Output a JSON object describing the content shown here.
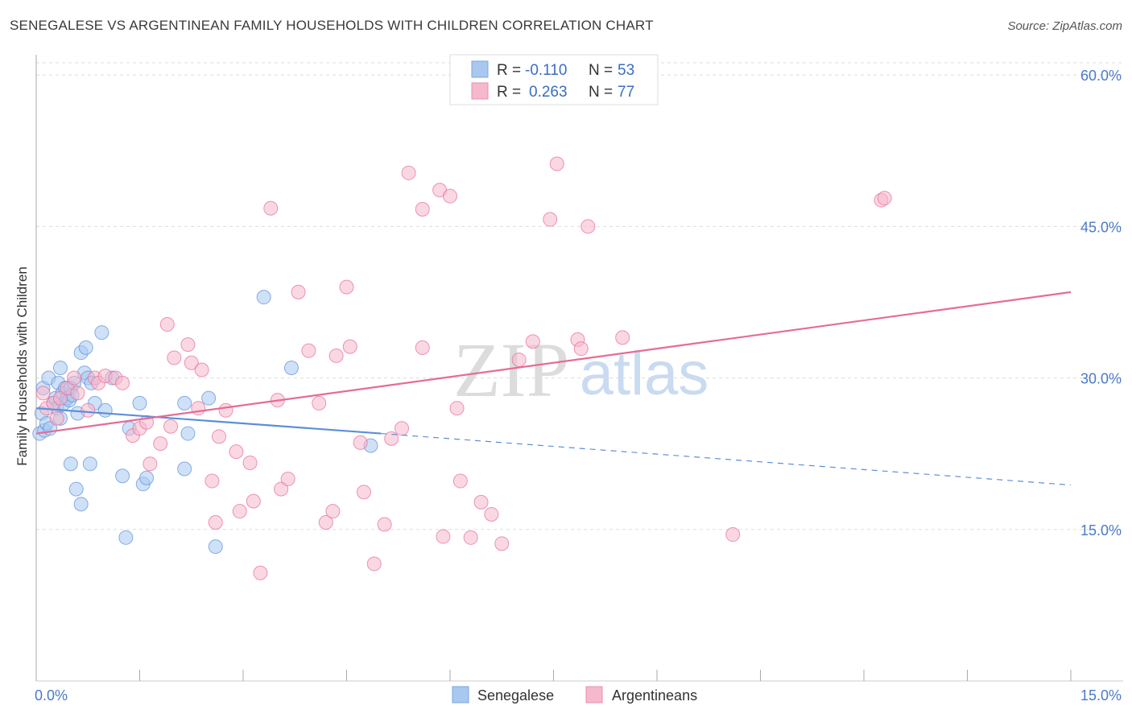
{
  "header": {
    "title": "SENEGALESE VS ARGENTINEAN FAMILY HOUSEHOLDS WITH CHILDREN CORRELATION CHART",
    "source": "Source: ZipAtlas.com"
  },
  "watermark": {
    "zip": "ZIP",
    "atlas": "atlas"
  },
  "legend": {
    "rows": [
      {
        "r_label": "R =",
        "r_value": "-0.110",
        "n_label": "N =",
        "n_value": "53",
        "color": "#a8c8f0"
      },
      {
        "r_label": "R =",
        "r_value": "0.263",
        "n_label": "N =",
        "n_value": "77",
        "color": "#f5b8cc"
      }
    ]
  },
  "chart_data": {
    "type": "scatter",
    "title": "SENEGALESE VS ARGENTINEAN FAMILY HOUSEHOLDS WITH CHILDREN CORRELATION CHART",
    "xlabel": "",
    "ylabel": "Family Households with Children",
    "xlim": [
      0,
      15
    ],
    "ylim": [
      0,
      62
    ],
    "x_tick_labels": [
      "0.0%",
      "15.0%"
    ],
    "y_ticks": [
      15,
      30,
      45,
      60
    ],
    "y_tick_labels": [
      "15.0%",
      "30.0%",
      "45.0%",
      "60.0%"
    ],
    "grid": true,
    "legend_position": "top-center",
    "series": [
      {
        "name": "Senegalese",
        "color": "#5b8fd8",
        "fill": "#a8c8f0",
        "r": -0.11,
        "n": 53,
        "trend": {
          "x0": 0.0,
          "y0": 27.0,
          "x1": 5.0,
          "y1": 24.5,
          "dashed_to_x": 15.0,
          "dashed_to_y": 19.4
        },
        "points": [
          [
            0.05,
            24.5
          ],
          [
            0.08,
            26.5
          ],
          [
            0.1,
            29.0
          ],
          [
            0.12,
            24.8
          ],
          [
            0.15,
            25.5
          ],
          [
            0.18,
            30.0
          ],
          [
            0.2,
            25.0
          ],
          [
            0.25,
            27.5
          ],
          [
            0.28,
            28.0
          ],
          [
            0.3,
            27.0
          ],
          [
            0.32,
            29.5
          ],
          [
            0.35,
            26.0
          ],
          [
            0.35,
            31.0
          ],
          [
            0.38,
            28.5
          ],
          [
            0.4,
            27.5
          ],
          [
            0.42,
            29.0
          ],
          [
            0.45,
            28.0
          ],
          [
            0.48,
            27.8
          ],
          [
            0.5,
            21.5
          ],
          [
            0.5,
            29.0
          ],
          [
            0.52,
            28.3
          ],
          [
            0.55,
            29.5
          ],
          [
            0.58,
            19.0
          ],
          [
            0.6,
            26.5
          ],
          [
            0.65,
            32.5
          ],
          [
            0.65,
            17.5
          ],
          [
            0.7,
            30.5
          ],
          [
            0.72,
            33.0
          ],
          [
            0.75,
            30.0
          ],
          [
            0.78,
            21.5
          ],
          [
            0.8,
            29.5
          ],
          [
            0.85,
            27.5
          ],
          [
            0.95,
            34.5
          ],
          [
            1.0,
            26.8
          ],
          [
            1.1,
            30.0
          ],
          [
            1.25,
            20.3
          ],
          [
            1.3,
            14.2
          ],
          [
            1.35,
            25.0
          ],
          [
            1.5,
            27.5
          ],
          [
            1.55,
            19.5
          ],
          [
            1.6,
            20.1
          ],
          [
            2.15,
            27.5
          ],
          [
            2.15,
            21.0
          ],
          [
            2.2,
            24.5
          ],
          [
            2.5,
            28.0
          ],
          [
            2.6,
            13.3
          ],
          [
            3.3,
            38.0
          ],
          [
            3.7,
            31.0
          ],
          [
            4.85,
            23.3
          ]
        ]
      },
      {
        "name": "Argentineans",
        "color": "#e66b95",
        "fill": "#f5b8cc",
        "r": 0.263,
        "n": 77,
        "trend": {
          "x0": 0.0,
          "y0": 24.5,
          "x1": 15.0,
          "y1": 38.5
        },
        "points": [
          [
            0.1,
            28.5
          ],
          [
            0.15,
            27.0
          ],
          [
            0.25,
            27.5
          ],
          [
            0.3,
            26.0
          ],
          [
            0.35,
            28.0
          ],
          [
            0.45,
            29.0
          ],
          [
            0.55,
            30.0
          ],
          [
            0.6,
            28.5
          ],
          [
            0.75,
            26.8
          ],
          [
            0.85,
            30.0
          ],
          [
            0.9,
            29.5
          ],
          [
            1.0,
            30.2
          ],
          [
            1.15,
            30.0
          ],
          [
            1.25,
            29.5
          ],
          [
            1.4,
            24.3
          ],
          [
            1.5,
            25.0
          ],
          [
            1.6,
            25.6
          ],
          [
            1.65,
            21.5
          ],
          [
            1.8,
            23.5
          ],
          [
            1.9,
            35.3
          ],
          [
            1.95,
            25.2
          ],
          [
            2.0,
            32.0
          ],
          [
            2.2,
            33.3
          ],
          [
            2.25,
            31.5
          ],
          [
            2.35,
            27.0
          ],
          [
            2.4,
            30.8
          ],
          [
            2.55,
            19.8
          ],
          [
            2.6,
            15.7
          ],
          [
            2.65,
            24.2
          ],
          [
            2.75,
            26.8
          ],
          [
            2.9,
            22.7
          ],
          [
            2.95,
            16.8
          ],
          [
            3.1,
            21.6
          ],
          [
            3.15,
            17.8
          ],
          [
            3.25,
            10.7
          ],
          [
            3.4,
            46.8
          ],
          [
            3.5,
            27.8
          ],
          [
            3.55,
            19.0
          ],
          [
            3.65,
            20.0
          ],
          [
            3.8,
            38.5
          ],
          [
            3.95,
            32.7
          ],
          [
            4.1,
            27.5
          ],
          [
            4.2,
            15.7
          ],
          [
            4.3,
            16.8
          ],
          [
            4.35,
            32.2
          ],
          [
            4.5,
            39.0
          ],
          [
            4.55,
            33.1
          ],
          [
            4.7,
            23.6
          ],
          [
            4.75,
            18.7
          ],
          [
            4.9,
            11.6
          ],
          [
            5.05,
            15.5
          ],
          [
            5.15,
            24.0
          ],
          [
            5.3,
            25.0
          ],
          [
            5.4,
            50.3
          ],
          [
            5.6,
            33.0
          ],
          [
            5.6,
            46.7
          ],
          [
            5.85,
            48.6
          ],
          [
            5.9,
            14.3
          ],
          [
            6.0,
            48.0
          ],
          [
            6.1,
            27.0
          ],
          [
            6.15,
            19.8
          ],
          [
            6.3,
            14.2
          ],
          [
            6.45,
            17.7
          ],
          [
            6.6,
            16.5
          ],
          [
            6.75,
            13.6
          ],
          [
            7.0,
            31.8
          ],
          [
            7.2,
            33.6
          ],
          [
            7.45,
            45.7
          ],
          [
            7.55,
            51.2
          ],
          [
            7.85,
            33.8
          ],
          [
            7.9,
            32.9
          ],
          [
            8.0,
            45.0
          ],
          [
            8.5,
            34.0
          ],
          [
            10.1,
            14.5
          ],
          [
            12.25,
            47.6
          ],
          [
            12.3,
            47.8
          ]
        ]
      }
    ]
  }
}
